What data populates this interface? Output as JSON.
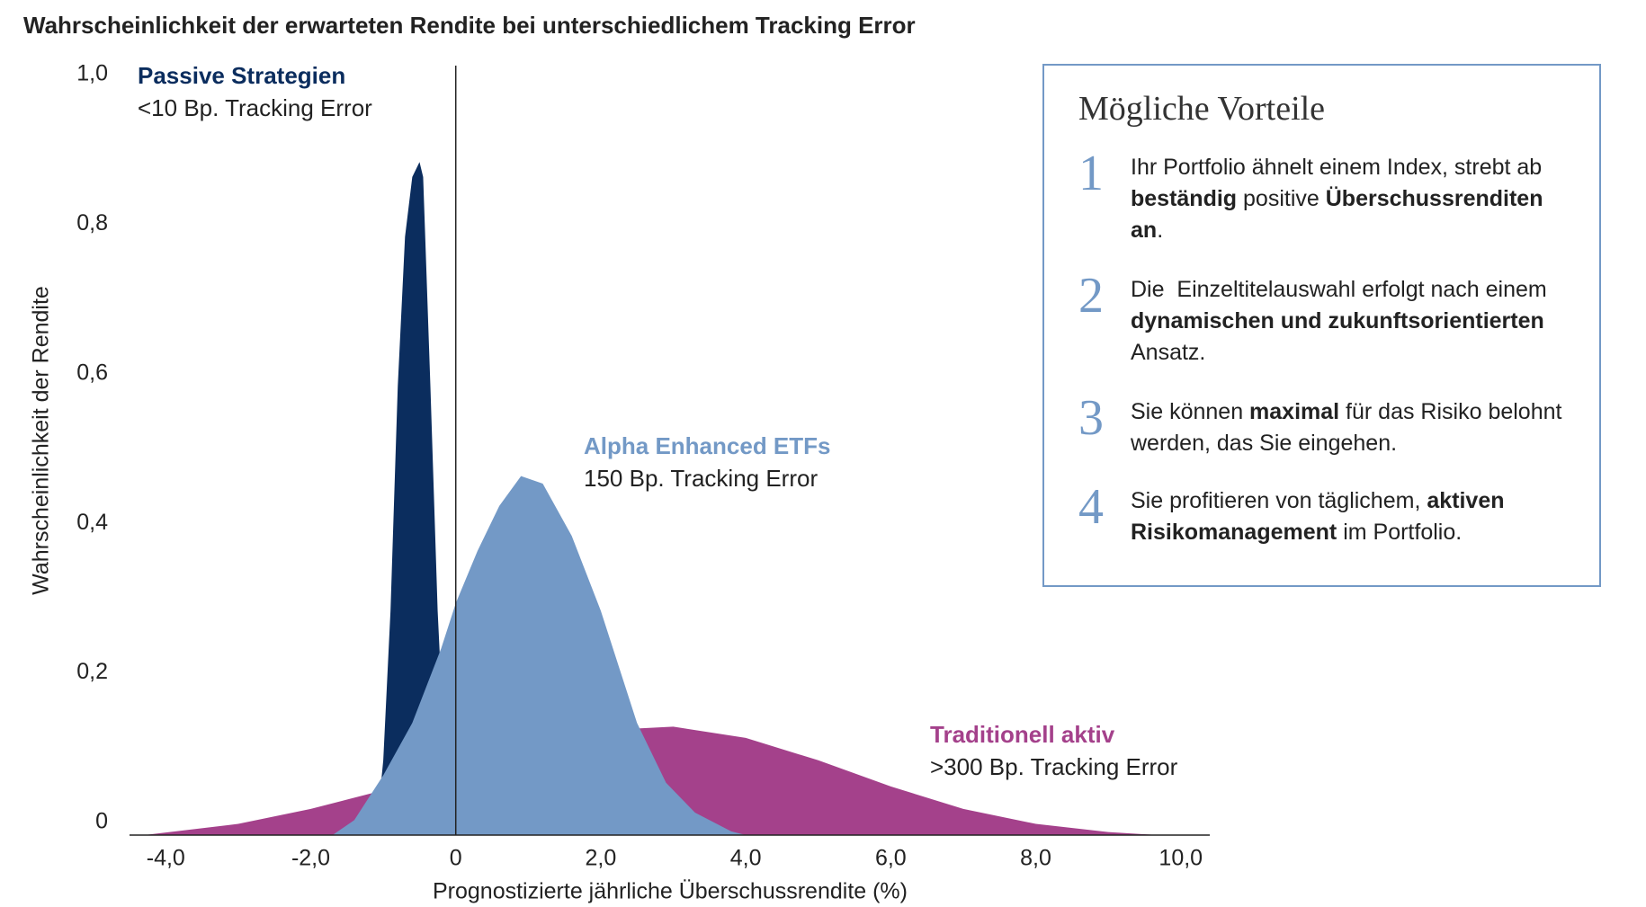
{
  "chart_data": {
    "type": "area",
    "title": "Wahrscheinlichkeit der erwarteten Rendite bei unterschiedlichem Tracking Error",
    "x_label": "Prognostizierte jährliche Überschussrendite (%)",
    "y_label": "Wahrscheinlichkeit der Rendite",
    "xlim": [
      -4.5,
      10.4
    ],
    "ylim": [
      0,
      1.0
    ],
    "grid": false,
    "xticks": [
      {
        "value": -4,
        "label": "-4,0"
      },
      {
        "value": -2,
        "label": "-2,0"
      },
      0,
      {
        "value": 2,
        "label": "2,0"
      },
      {
        "value": 4,
        "label": "4,0"
      },
      {
        "value": 6,
        "label": "6,0"
      },
      {
        "value": 8,
        "label": "8,0"
      },
      {
        "value": 10,
        "label": "10,0"
      }
    ],
    "yticks": [
      0,
      {
        "value": 0.2,
        "label": "0,2"
      },
      {
        "value": 0.4,
        "label": "0,4"
      },
      {
        "value": 0.6,
        "label": "0,6"
      },
      {
        "value": 0.8,
        "label": "0,8"
      },
      {
        "value": 1.0,
        "label": "1,0"
      }
    ],
    "series": [
      {
        "name": "Traditionell aktiv",
        "note": ">300 Bp. Tracking Error",
        "color": "#a4418b",
        "x": [
          -4.3,
          -3.0,
          -2.0,
          -1.0,
          0,
          1.0,
          2.0,
          3.0,
          4.0,
          5.0,
          6.0,
          7.0,
          8.0,
          9.0,
          9.7
        ],
        "values": [
          0,
          0.015,
          0.035,
          0.06,
          0.09,
          0.12,
          0.14,
          0.145,
          0.13,
          0.1,
          0.065,
          0.035,
          0.015,
          0.004,
          0
        ]
      },
      {
        "name": "Passive Strategien",
        "note": "<10 Bp. Tracking Error",
        "color": "#0b2d5e",
        "x": [
          -1.1,
          -1.0,
          -0.9,
          -0.8,
          -0.7,
          -0.6,
          -0.5,
          -0.45,
          -0.35,
          -0.25,
          -0.15,
          -0.05,
          0
        ],
        "values": [
          0,
          0.1,
          0.3,
          0.6,
          0.8,
          0.88,
          0.9,
          0.88,
          0.6,
          0.3,
          0.1,
          0.02,
          0
        ]
      },
      {
        "name": "Alpha Enhanced ETFs",
        "note": "150 Bp. Tracking Error",
        "color": "#7399c6",
        "x": [
          -1.7,
          -1.4,
          -1.0,
          -0.6,
          -0.2,
          0,
          0.3,
          0.6,
          0.9,
          1.2,
          1.6,
          2.0,
          2.5,
          2.9,
          3.3,
          3.8,
          4.0
        ],
        "values": [
          0,
          0.02,
          0.08,
          0.15,
          0.25,
          0.31,
          0.38,
          0.44,
          0.48,
          0.47,
          0.4,
          0.3,
          0.15,
          0.07,
          0.03,
          0.005,
          0
        ]
      }
    ]
  },
  "panel": {
    "title": "Mögliche Vorteile",
    "items": [
      {
        "number": "1",
        "runs": [
          {
            "text": "Ihr Portfolio ähnelt einem Index, strebt ab ",
            "bold": false
          },
          {
            "text": "beständig",
            "bold": true
          },
          {
            "text": " positive ",
            "bold": false
          },
          {
            "text": "Überschussrenditen an",
            "bold": true
          },
          {
            "text": ".",
            "bold": false
          }
        ]
      },
      {
        "number": "2",
        "runs": [
          {
            "text": "Die  Einzeltitelauswahl erfolgt nach einem ",
            "bold": false
          },
          {
            "text": "dynamischen und zukunftsorientierten",
            "bold": true
          },
          {
            "text": " Ansatz.",
            "bold": false
          }
        ]
      },
      {
        "number": "3",
        "runs": [
          {
            "text": "Sie können ",
            "bold": false
          },
          {
            "text": "maximal",
            "bold": true
          },
          {
            "text": " für das Risiko belohnt werden, das Sie eingehen.",
            "bold": false
          }
        ]
      },
      {
        "number": "4",
        "runs": [
          {
            "text": "Sie profitieren von täglichem, ",
            "bold": false
          },
          {
            "text": "aktiven Risikomanagement",
            "bold": true
          },
          {
            "text": " im Portfolio.",
            "bold": false
          }
        ]
      }
    ]
  }
}
